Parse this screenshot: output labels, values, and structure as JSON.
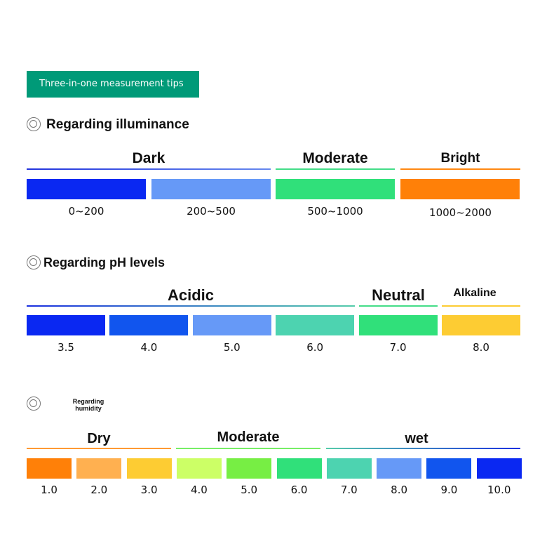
{
  "banner": {
    "title": "Three-in-one measurement tips"
  },
  "illuminance": {
    "title": "Regarding illuminance",
    "groups": [
      "Dark",
      "Moderate",
      "Bright"
    ],
    "ranges": [
      "0~200",
      "200~500",
      "500~1000",
      "1000~2000"
    ],
    "colors": [
      "#0a28f2",
      "#6699f7",
      "#30e07a",
      "#ff8008"
    ],
    "group_colors": [
      "#2233dd",
      "#44dd88",
      "#ff8811"
    ]
  },
  "ph": {
    "title": "Regarding pH levels",
    "groups": [
      "Acidic",
      "Neutral",
      "Alkaline"
    ],
    "values": [
      "3.5",
      "4.0",
      "5.0",
      "6.0",
      "7.0",
      "8.0"
    ],
    "colors": [
      "#0a28f2",
      "#1155ee",
      "#6699f7",
      "#4dd3b0",
      "#30e07a",
      "#fdcc33"
    ],
    "group_colors": [
      "#2233dd",
      "#44dd88",
      "#fdcc33"
    ]
  },
  "humidity": {
    "title": "Regarding humidity",
    "groups": [
      "Dry",
      "Moderate",
      "wet"
    ],
    "values": [
      "1.0",
      "2.0",
      "3.0",
      "4.0",
      "5.0",
      "6.0",
      "7.0",
      "8.0",
      "9.0",
      "10.0"
    ],
    "colors": [
      "#ff8008",
      "#ffb050",
      "#fdcc33",
      "#ccff66",
      "#77ee44",
      "#30e07a",
      "#4dd3b0",
      "#6699f7",
      "#1155ee",
      "#0a28f2"
    ],
    "group_colors": [
      "#ff9933",
      "#77ee66",
      "#2233dd"
    ]
  }
}
